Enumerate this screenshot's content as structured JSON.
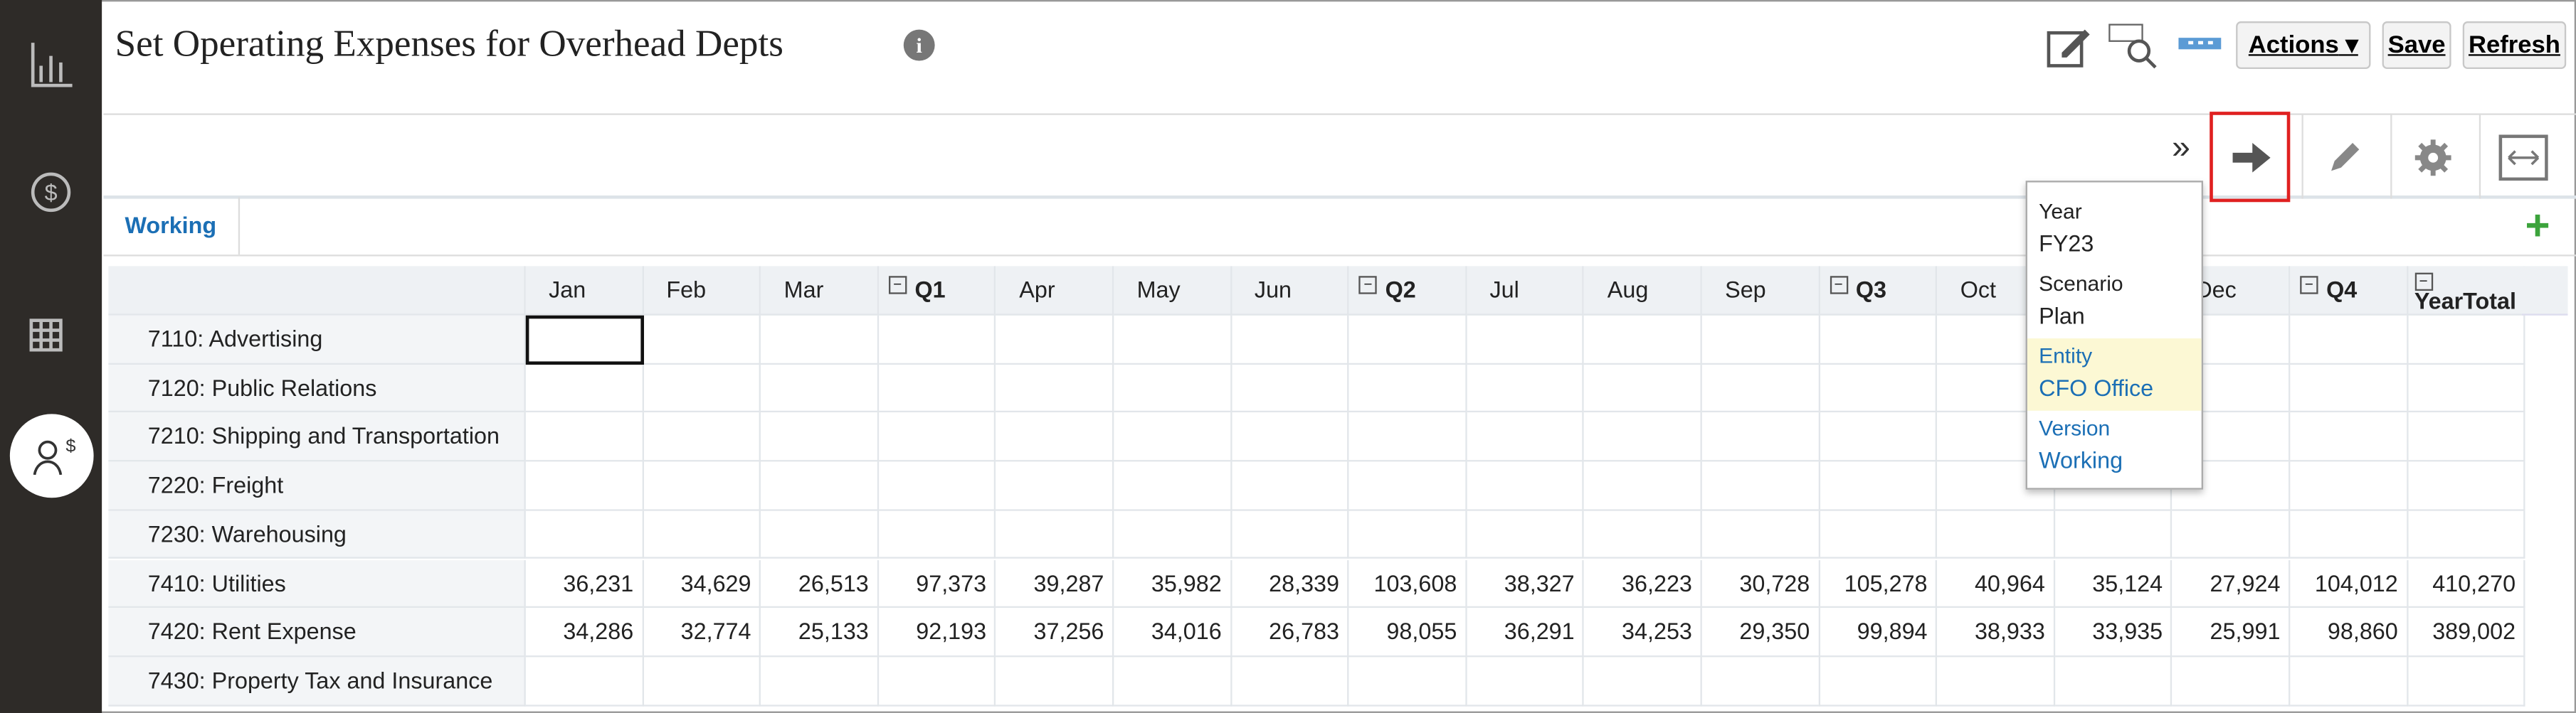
{
  "header": {
    "title": "Set Operating Expenses for Overhead Depts",
    "buttons": [
      "Actions",
      "Save",
      "Refresh"
    ]
  },
  "tab": "Working",
  "pov": [
    {
      "label": "Year",
      "value": "FY23"
    },
    {
      "label": "Scenario",
      "value": "Plan"
    },
    {
      "label": "Entity",
      "value": "CFO Office"
    },
    {
      "label": "Version",
      "value": "Working"
    }
  ],
  "table": {
    "columns": [
      "Jan",
      "Feb",
      "Mar",
      "Q1",
      "Apr",
      "May",
      "Jun",
      "Q2",
      "Jul",
      "Aug",
      "Sep",
      "Q3",
      "Oct",
      null,
      "Dec",
      "Q4",
      "YearTotal"
    ],
    "rows": [
      {
        "label": "7110: Advertising"
      },
      {
        "label": "7120: Public Relations"
      },
      {
        "label": "7210: Shipping and Transportation"
      },
      {
        "label": "7220: Freight"
      },
      {
        "label": "7230: Warehousing"
      },
      {
        "label": "7410: Utilities",
        "values": [
          "36,231",
          "34,629",
          "26,513",
          "97,373",
          "39,287",
          "35,982",
          "28,339",
          "103,608",
          "38,327",
          "36,223",
          "30,728",
          "105,278",
          "40,964",
          "35,124",
          "27,924",
          "104,012",
          "410,270"
        ]
      },
      {
        "label": "7420: Rent Expense",
        "values": [
          "34,286",
          "32,774",
          "25,133",
          "92,193",
          "37,256",
          "34,016",
          "26,783",
          "98,055",
          "36,291",
          "34,253",
          "29,350",
          "99,894",
          "38,933",
          "33,935",
          "25,991",
          "98,860",
          "389,002"
        ]
      },
      {
        "label": "7430: Property Tax and Insurance"
      }
    ]
  }
}
